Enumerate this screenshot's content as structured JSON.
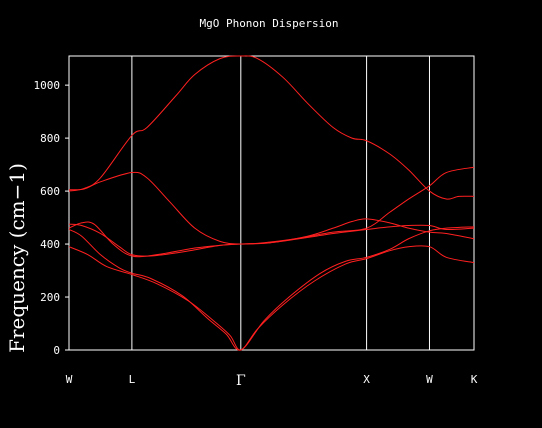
{
  "colors": {
    "background": "#000000",
    "axes": "#ffffff",
    "bands": "#ff2020"
  },
  "chart_data": {
    "type": "line",
    "title": "MgO Phonon Dispersion",
    "ylabel": "Frequency (cm−1)",
    "xlabel": "",
    "ylim": [
      0,
      1110
    ],
    "yticks": [
      0,
      200,
      400,
      600,
      800,
      1000
    ],
    "kpath": [
      {
        "label": "W",
        "x": 0.0
      },
      {
        "label": "L",
        "x": 0.5
      },
      {
        "label": "Γ",
        "x": 1.366
      },
      {
        "label": "X",
        "x": 2.366
      },
      {
        "label": "W",
        "x": 2.866
      },
      {
        "label": "K",
        "x": 3.22
      }
    ],
    "grid": false,
    "legend": "none",
    "series": [
      {
        "points": [
          [
            0,
            600
          ],
          [
            0.12,
            610
          ],
          [
            0.25,
            650
          ],
          [
            0.5,
            810
          ],
          [
            0.62,
            840
          ],
          [
            0.85,
            960
          ],
          [
            1.0,
            1040
          ],
          [
            1.2,
            1100
          ],
          [
            1.366,
            1110
          ],
          [
            1.5,
            1100
          ],
          [
            1.7,
            1030
          ],
          [
            1.9,
            930
          ],
          [
            2.1,
            840
          ],
          [
            2.25,
            800
          ],
          [
            2.366,
            790
          ],
          [
            2.55,
            740
          ],
          [
            2.7,
            680
          ],
          [
            2.866,
            600
          ],
          [
            3.0,
            570
          ],
          [
            3.1,
            580
          ],
          [
            3.22,
            580
          ]
        ]
      },
      {
        "points": [
          [
            0,
            605
          ],
          [
            0.12,
            608
          ],
          [
            0.25,
            635
          ],
          [
            0.5,
            670
          ],
          [
            0.62,
            650
          ],
          [
            0.8,
            560
          ],
          [
            1.0,
            460
          ],
          [
            1.2,
            410
          ],
          [
            1.366,
            400
          ],
          [
            1.55,
            405
          ],
          [
            1.8,
            420
          ],
          [
            2.1,
            445
          ],
          [
            2.366,
            460
          ],
          [
            2.55,
            520
          ],
          [
            2.7,
            570
          ],
          [
            2.866,
            620
          ],
          [
            3.0,
            670
          ],
          [
            3.22,
            690
          ]
        ]
      },
      {
        "points": [
          [
            0,
            475
          ],
          [
            0.1,
            470
          ],
          [
            0.25,
            440
          ],
          [
            0.4,
            390
          ],
          [
            0.5,
            360
          ],
          [
            0.65,
            355
          ],
          [
            0.9,
            370
          ],
          [
            1.2,
            395
          ],
          [
            1.366,
            400
          ],
          [
            1.6,
            405
          ],
          [
            1.9,
            430
          ],
          [
            2.1,
            460
          ],
          [
            2.25,
            485
          ],
          [
            2.366,
            495
          ],
          [
            2.55,
            480
          ],
          [
            2.7,
            460
          ],
          [
            2.866,
            445
          ],
          [
            3.0,
            440
          ],
          [
            3.22,
            420
          ]
        ]
      },
      {
        "points": [
          [
            0,
            460
          ],
          [
            0.1,
            480
          ],
          [
            0.2,
            475
          ],
          [
            0.35,
            400
          ],
          [
            0.5,
            355
          ],
          [
            0.7,
            360
          ],
          [
            1.0,
            385
          ],
          [
            1.2,
            395
          ],
          [
            1.366,
            400
          ],
          [
            1.6,
            405
          ],
          [
            1.9,
            425
          ],
          [
            2.1,
            440
          ],
          [
            2.366,
            455
          ],
          [
            2.55,
            465
          ],
          [
            2.7,
            470
          ],
          [
            2.866,
            470
          ],
          [
            3.0,
            455
          ],
          [
            3.22,
            460
          ]
        ]
      },
      {
        "points": [
          [
            0,
            455
          ],
          [
            0.1,
            430
          ],
          [
            0.25,
            360
          ],
          [
            0.4,
            310
          ],
          [
            0.5,
            290
          ],
          [
            0.65,
            270
          ],
          [
            0.9,
            205
          ],
          [
            1.1,
            120
          ],
          [
            1.25,
            60
          ],
          [
            1.366,
            0
          ],
          [
            1.55,
            110
          ],
          [
            1.75,
            200
          ],
          [
            2.0,
            290
          ],
          [
            2.2,
            335
          ],
          [
            2.366,
            350
          ],
          [
            2.55,
            380
          ],
          [
            2.7,
            420
          ],
          [
            2.866,
            450
          ],
          [
            3.0,
            460
          ],
          [
            3.22,
            465
          ]
        ]
      },
      {
        "points": [
          [
            0,
            390
          ],
          [
            0.15,
            360
          ],
          [
            0.3,
            315
          ],
          [
            0.5,
            285
          ],
          [
            0.7,
            250
          ],
          [
            0.95,
            185
          ],
          [
            1.15,
            110
          ],
          [
            1.28,
            55
          ],
          [
            1.366,
            0
          ],
          [
            1.5,
            80
          ],
          [
            1.7,
            170
          ],
          [
            1.95,
            260
          ],
          [
            2.2,
            325
          ],
          [
            2.366,
            345
          ],
          [
            2.55,
            375
          ],
          [
            2.7,
            390
          ],
          [
            2.866,
            390
          ],
          [
            3.0,
            350
          ],
          [
            3.22,
            330
          ]
        ]
      }
    ]
  }
}
